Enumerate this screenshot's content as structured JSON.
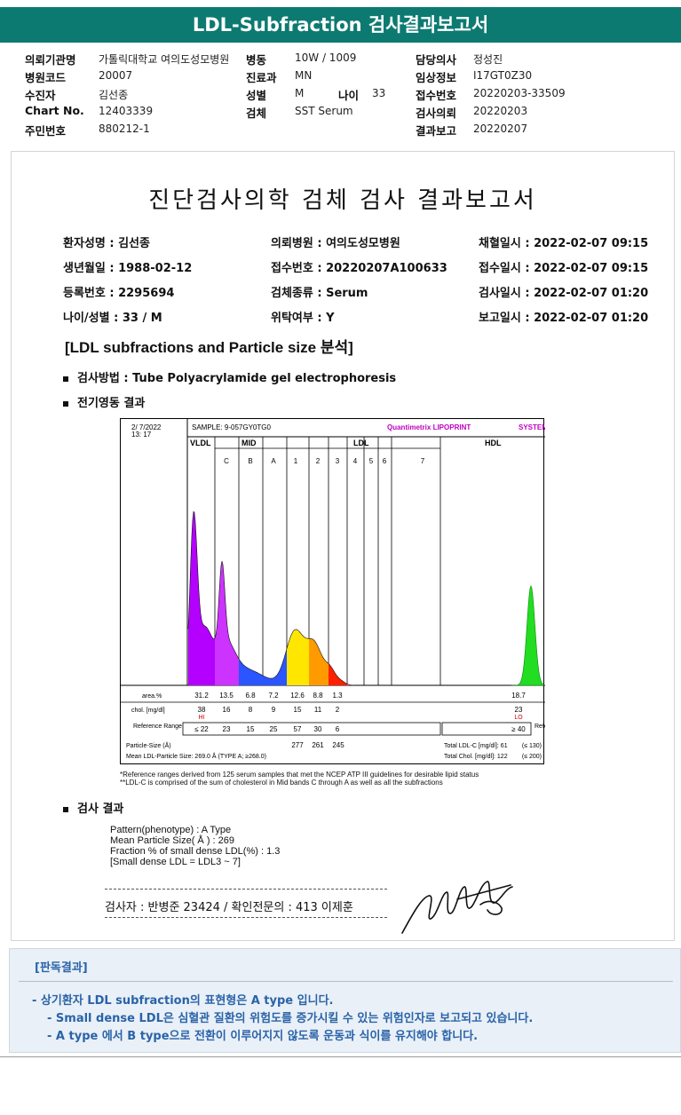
{
  "title": "LDL-Subfraction 검사결과보고서",
  "header": {
    "rows": [
      [
        {
          "label": "의뢰기관명",
          "value": "가톨릭대학교 여의도성모병원"
        },
        {
          "label": "병동",
          "value": "10W / 1009"
        },
        {
          "label": "담당의사",
          "value": "정성진"
        }
      ],
      [
        {
          "label": "병원코드",
          "value": "20007"
        },
        {
          "label": "진료과",
          "value": "MN"
        },
        {
          "label": "임상정보",
          "value": "I17GT0Z30"
        }
      ],
      [
        {
          "label": "수진자",
          "value": "김선종"
        },
        {
          "label": "성별",
          "value": "M"
        },
        {
          "label": "접수번호",
          "value": "20220203-33509"
        }
      ],
      [
        {
          "label": "Chart No.",
          "value": "12403339"
        },
        {
          "label": "검체",
          "value": "SST Serum"
        },
        {
          "label": "검사의뢰",
          "value": "20220203"
        }
      ],
      [
        {
          "label": "주민번호",
          "value": "880212-1"
        },
        {
          "label": "",
          "value": ""
        },
        {
          "label": "결과보고",
          "value": "20220207"
        }
      ]
    ],
    "age_label": "나이",
    "age_value": "33"
  },
  "report": {
    "title": "진단검사의학 검체 검사 결과보고서",
    "patient": [
      [
        "환자성명 : 김선종",
        "의뢰병원 : 여의도성모병원",
        "채혈일시 : 2022-02-07 09:15"
      ],
      [
        "생년월일 : 1988-02-12",
        "접수번호 : 20220207A100633",
        "접수일시 : 2022-02-07 09:15"
      ],
      [
        "등록번호 : 2295694",
        "검체종류 : Serum",
        "검사일시 : 2022-02-07 01:20"
      ],
      [
        "나이/성별 : 33 / M",
        "위탁여부 : Y",
        "보고일시 : 2022-02-07 01:20"
      ]
    ],
    "section_title": "[LDL subfractions and Particle size 분석]",
    "method": "검사방법 : Tube Polyacrylamide gel electrophoresis",
    "electro_title": "전기영동 결과",
    "result_title": "검사 결과"
  },
  "chart_data": {
    "type": "area",
    "date": "2/ 7/2022",
    "time": "13: 17",
    "sample": "SAMPLE:  9-057GY0TG0",
    "brand": "Quantimetrix LIPOPRINT",
    "brand_suffix": "SYSTEM",
    "bands": [
      "VLDL",
      "C",
      "B",
      "A",
      "1",
      "2",
      "3",
      "4",
      "5",
      "6",
      "7"
    ],
    "groups": [
      "VLDL",
      "MID",
      "LDL",
      "HDL"
    ],
    "table": {
      "area_label": "area.%",
      "area": [
        "31.2",
        "13.5",
        "6.8",
        "7.2",
        "12.6",
        "8.8",
        "1.3"
      ],
      "area_hdl": "18.7",
      "chol_label": "chol. [mg/dl]",
      "chol": [
        "38",
        "16",
        "8",
        "9",
        "15",
        "11",
        "2"
      ],
      "chol_hdl": "23",
      "flag_vldl": "HI",
      "flag_hdl": "LO",
      "ref_label": "Reference Range",
      "ref": [
        "≤ 22",
        "23",
        "15",
        "25",
        "57",
        "30",
        "6"
      ],
      "ref_hdl": "≥ 40",
      "ref_label2": "Reference Range",
      "psize_label": "Particle-Size (Å)",
      "psize": [
        "277",
        "261",
        "245"
      ],
      "mean_label": "Mean LDL-Particle Size:  269.0 Å  (TYPE A; ≥268.0)",
      "total_ldl": "Total LDL-C [mg/dl]:  61",
      "total_ldl_ref": "(≤ 130)",
      "total_chol": "Total Chol. [mg/dl]:  122",
      "total_chol_ref": "(≤ 200)"
    },
    "colors": {
      "vldl": "#b400ff",
      "mid_c": "#cc33ff",
      "mid_b": "#2a55ff",
      "ldl1": "#ffe600",
      "ldl2": "#ff9a00",
      "ldl3": "#ff2000",
      "hdl": "#22dd22"
    }
  },
  "notes": [
    "*Reference ranges derived from 125 serum samples that met the NCEP ATP III guidelines for desirable lipid status",
    "**LDL-C is comprised of the sum of cholesterol in Mid bands C through A as well as all the subfractions"
  ],
  "results": [
    "Pattern(phenotype) : A Type",
    "Mean Particle Size( Å ) : 269",
    "Fraction % of small dense LDL(%) : 1.3",
    "[Small dense LDL = LDL3 ~ 7]"
  ],
  "signature": "검사자 : 반병준  23424  /  확인전문의 : 413  이제훈",
  "judgement": {
    "title": "[판독결과]",
    "lines": [
      "- 상기환자 LDL subfraction의 표현형은 A type 입니다.",
      "-  Small dense LDL은 심혈관 질환의 위험도를 증가시킬 수 있는 위험인자로 보고되고 있습니다.",
      "-  A type 에서 B type으로 전환이 이루어지지 않도록 운동과 식이를 유지해야 합니다."
    ]
  }
}
